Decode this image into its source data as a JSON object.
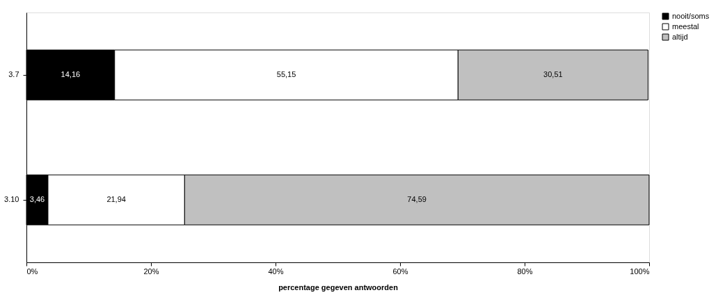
{
  "chart_data": {
    "type": "bar",
    "orientation": "horizontal",
    "stacked": true,
    "xlabel": "percentage gegeven antwoorden",
    "categories": [
      "3.7",
      "3.10"
    ],
    "series": [
      {
        "name": "nooit/soms",
        "color": "#000000",
        "values": [
          14.16,
          3.46
        ],
        "value_labels": [
          "14,16",
          "3,46"
        ]
      },
      {
        "name": "meestal",
        "color": "#ffffff",
        "values": [
          55.15,
          21.94
        ],
        "value_labels": [
          "55,15",
          "21,94"
        ]
      },
      {
        "name": "altijd",
        "color": "#c0c0c0",
        "values": [
          30.51,
          74.59
        ],
        "value_labels": [
          "30,51",
          "74,59"
        ]
      }
    ],
    "xlim": [
      0,
      100
    ],
    "xticks": [
      {
        "value": 0,
        "label": "0%"
      },
      {
        "value": 20,
        "label": "20%"
      },
      {
        "value": 40,
        "label": "40%"
      },
      {
        "value": 60,
        "label": "60%"
      },
      {
        "value": 80,
        "label": "80%"
      },
      {
        "value": 100,
        "label": "100%"
      }
    ],
    "grid": false,
    "legend": "right"
  }
}
